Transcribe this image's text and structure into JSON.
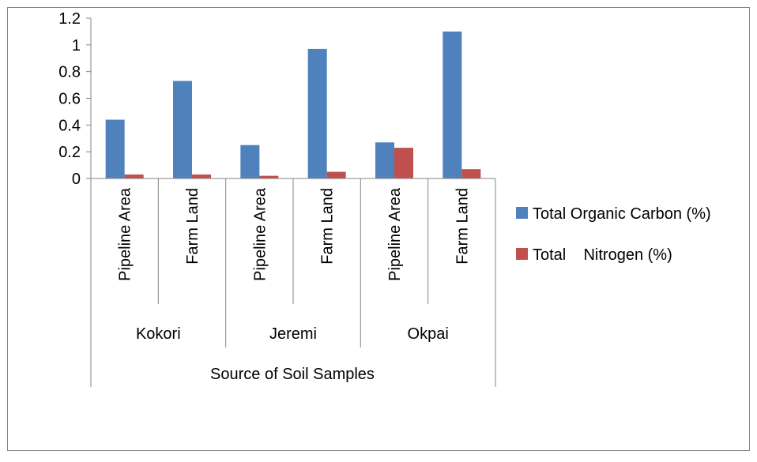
{
  "chart_data": {
    "type": "bar",
    "title": "",
    "xlabel": "Source of Soil Samples",
    "ylabel": "",
    "ylim": [
      0,
      1.2
    ],
    "yticks": [
      "0",
      "0.2",
      "0.4",
      "0.6",
      "0.8",
      "1",
      "1.2"
    ],
    "groups": [
      {
        "name": "Kokori",
        "categories": [
          "Pipeline Area",
          "Farm Land"
        ]
      },
      {
        "name": "Jeremi",
        "categories": [
          "Pipeline Area",
          "Farm Land"
        ]
      },
      {
        "name": "Okpai",
        "categories": [
          "Pipeline Area",
          "Farm Land"
        ]
      }
    ],
    "series": [
      {
        "name": "Total Organic Carbon (%)",
        "color": "#4F81BD",
        "values": [
          0.44,
          0.73,
          0.25,
          0.97,
          0.27,
          1.1
        ]
      },
      {
        "name": "Total    Nitrogen (%)",
        "color": "#C0504D",
        "values": [
          0.03,
          0.03,
          0.02,
          0.05,
          0.23,
          0.07
        ]
      }
    ],
    "legend_position": "right",
    "grid": false
  }
}
